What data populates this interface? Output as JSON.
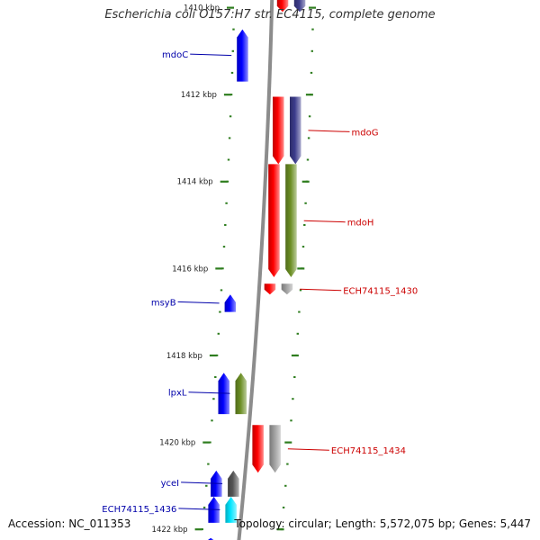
{
  "title": "Escherichia coli O157:H7 str. EC4115, complete genome",
  "accession": "Accession: NC_011353",
  "topology_info": "Topology: circular; Length: 5,572,075 bp; Genes: 5,447",
  "colors": {
    "backbone": "#8c8c8c",
    "tick": "#2e7d1e",
    "forward_label": "#0000aa",
    "reverse_label": "#cc0000",
    "blue": "#0000ff",
    "red": "#ff0000",
    "olive": "#6b8e23",
    "navy": "#3c3c8c",
    "gray": "#a0a0a0",
    "darkgray": "#555555",
    "cyan": "#00e5ff"
  },
  "ruler": {
    "labels": [
      "1410 kbp",
      "1412 kbp",
      "1414 kbp",
      "1416 kbp",
      "1418 kbp",
      "1420 kbp",
      "1422 kbp"
    ],
    "kbp": [
      1410,
      1412,
      1414,
      1416,
      1418,
      1420,
      1422
    ]
  },
  "genes": [
    {
      "label": "",
      "strand": "+",
      "track": "inner",
      "start": 1409.8,
      "end": 1410.1,
      "color": "red"
    },
    {
      "label": "",
      "strand": "+",
      "track": "outer",
      "start": 1409.8,
      "end": 1410.1,
      "color": "navy"
    },
    {
      "label": "mdoC",
      "strand": "-",
      "track": "outer",
      "start": 1410.5,
      "end": 1411.7,
      "color": "blue"
    },
    {
      "label": "",
      "strand": "+",
      "track": "inner",
      "start": 1412.05,
      "end": 1413.6,
      "color": "red"
    },
    {
      "label": "mdoG",
      "strand": "+",
      "track": "outer",
      "start": 1412.05,
      "end": 1413.6,
      "color": "navy"
    },
    {
      "label": "",
      "strand": "+",
      "track": "inner",
      "start": 1413.6,
      "end": 1416.2,
      "color": "red"
    },
    {
      "label": "mdoH",
      "strand": "+",
      "track": "outer",
      "start": 1413.6,
      "end": 1416.2,
      "color": "olive"
    },
    {
      "label": "",
      "strand": "+",
      "track": "inner",
      "start": 1416.35,
      "end": 1416.6,
      "color": "red"
    },
    {
      "label": "ECH74115_1430",
      "strand": "+",
      "track": "outer",
      "start": 1416.35,
      "end": 1416.6,
      "color": "gray"
    },
    {
      "label": "msyB",
      "strand": "-",
      "track": "outer",
      "start": 1416.6,
      "end": 1417.0,
      "color": "blue"
    },
    {
      "label": "lpxL",
      "strand": "-",
      "track": "inner",
      "start": 1418.4,
      "end": 1419.35,
      "color": "olive"
    },
    {
      "label": "",
      "strand": "-",
      "track": "outer",
      "start": 1418.4,
      "end": 1419.35,
      "color": "blue"
    },
    {
      "label": "",
      "strand": "+",
      "track": "inner",
      "start": 1419.6,
      "end": 1420.7,
      "color": "red"
    },
    {
      "label": "ECH74115_1434",
      "strand": "+",
      "track": "outer",
      "start": 1419.6,
      "end": 1420.7,
      "color": "gray"
    },
    {
      "label": "yceI",
      "strand": "-",
      "track": "inner",
      "start": 1420.65,
      "end": 1421.25,
      "color": "darkgray"
    },
    {
      "label": "",
      "strand": "-",
      "track": "outer",
      "start": 1420.65,
      "end": 1421.25,
      "color": "blue"
    },
    {
      "label": "ECH74115_1436",
      "strand": "-",
      "track": "inner",
      "start": 1421.25,
      "end": 1421.85,
      "color": "cyan"
    },
    {
      "label": "",
      "strand": "-",
      "track": "outer",
      "start": 1421.25,
      "end": 1421.85,
      "color": "blue"
    },
    {
      "label": "",
      "strand": "-",
      "track": "outer",
      "start": 1422.2,
      "end": 1422.4,
      "color": "blue"
    }
  ]
}
